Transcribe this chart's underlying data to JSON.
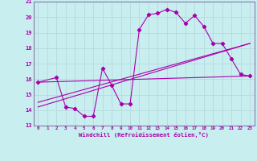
{
  "background_color": "#c8eef0",
  "grid_color": "#b8dce0",
  "line_color": "#aa00aa",
  "xlabel": "Windchill (Refroidissement éolien,°C)",
  "xlim": [
    -0.5,
    23.5
  ],
  "ylim": [
    13,
    21
  ],
  "yticks": [
    13,
    14,
    15,
    16,
    17,
    18,
    19,
    20,
    21
  ],
  "xticks": [
    0,
    1,
    2,
    3,
    4,
    5,
    6,
    7,
    8,
    9,
    10,
    11,
    12,
    13,
    14,
    15,
    16,
    17,
    18,
    19,
    20,
    21,
    22,
    23
  ],
  "series_main": {
    "x": [
      0,
      2,
      3,
      4,
      5,
      6,
      7,
      8,
      9,
      10,
      11,
      12,
      13,
      14,
      15,
      16,
      17,
      18,
      19,
      20,
      21,
      22,
      23
    ],
    "y": [
      15.8,
      16.1,
      14.2,
      14.1,
      13.6,
      13.6,
      16.7,
      15.6,
      14.4,
      14.4,
      19.2,
      20.15,
      20.25,
      20.5,
      20.3,
      19.6,
      20.1,
      19.4,
      18.3,
      18.3,
      17.3,
      16.3,
      16.2
    ]
  },
  "series_line1": {
    "x": [
      0,
      23
    ],
    "y": [
      15.8,
      16.2
    ]
  },
  "series_line2": {
    "x": [
      0,
      23
    ],
    "y": [
      14.5,
      18.3
    ]
  },
  "series_line3": {
    "x": [
      0,
      23
    ],
    "y": [
      14.2,
      18.3
    ]
  }
}
